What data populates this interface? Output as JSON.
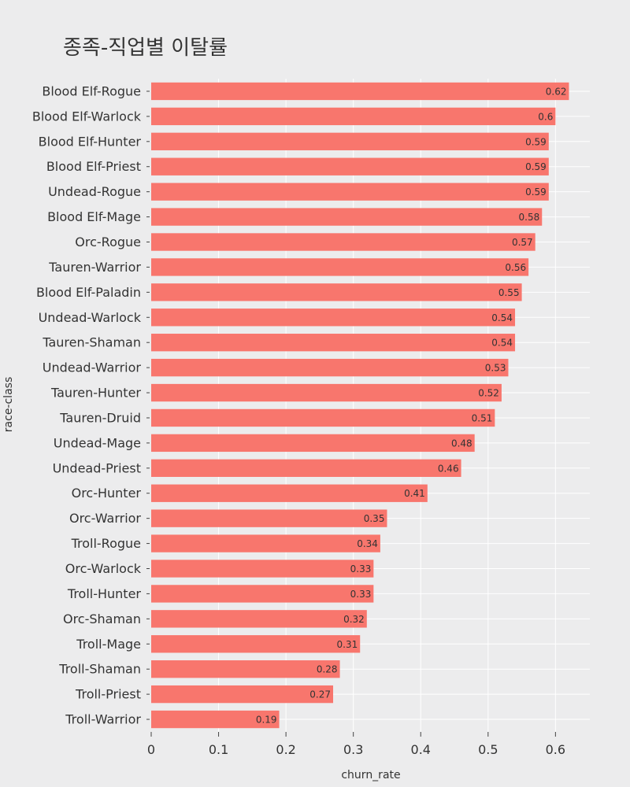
{
  "chart_data": {
    "type": "bar",
    "orientation": "horizontal",
    "title": "종족-직업별 이탈률",
    "xlabel": "churn_rate",
    "ylabel": "race-class",
    "xlim": [
      0,
      0.651
    ],
    "xticks": [
      0,
      0.1,
      0.2,
      0.3,
      0.4,
      0.5,
      0.6
    ],
    "xtick_labels": [
      "0",
      "0.1",
      "0.2",
      "0.3",
      "0.4",
      "0.5",
      "0.6"
    ],
    "grid": "vertical",
    "bar_color": "#f8766d",
    "background": "#ececed",
    "gridline_color": "#ffffff",
    "categories": [
      "Blood Elf-Rogue",
      "Blood Elf-Warlock",
      "Blood Elf-Hunter",
      "Blood Elf-Priest",
      "Undead-Rogue",
      "Blood Elf-Mage",
      "Orc-Rogue",
      "Tauren-Warrior",
      "Blood Elf-Paladin",
      "Undead-Warlock",
      "Tauren-Shaman",
      "Undead-Warrior",
      "Tauren-Hunter",
      "Tauren-Druid",
      "Undead-Mage",
      "Undead-Priest",
      "Orc-Hunter",
      "Orc-Warrior",
      "Troll-Rogue",
      "Orc-Warlock",
      "Troll-Hunter",
      "Orc-Shaman",
      "Troll-Mage",
      "Troll-Shaman",
      "Troll-Priest",
      "Troll-Warrior"
    ],
    "values": [
      0.62,
      0.6,
      0.59,
      0.59,
      0.59,
      0.58,
      0.57,
      0.56,
      0.55,
      0.54,
      0.54,
      0.53,
      0.52,
      0.51,
      0.48,
      0.46,
      0.41,
      0.35,
      0.34,
      0.33,
      0.33,
      0.32,
      0.31,
      0.28,
      0.27,
      0.19
    ],
    "value_labels": [
      "0.62",
      "0.6",
      "0.59",
      "0.59",
      "0.59",
      "0.58",
      "0.57",
      "0.56",
      "0.55",
      "0.54",
      "0.54",
      "0.53",
      "0.52",
      "0.51",
      "0.48",
      "0.46",
      "0.41",
      "0.35",
      "0.34",
      "0.33",
      "0.33",
      "0.32",
      "0.31",
      "0.28",
      "0.27",
      "0.19"
    ]
  }
}
